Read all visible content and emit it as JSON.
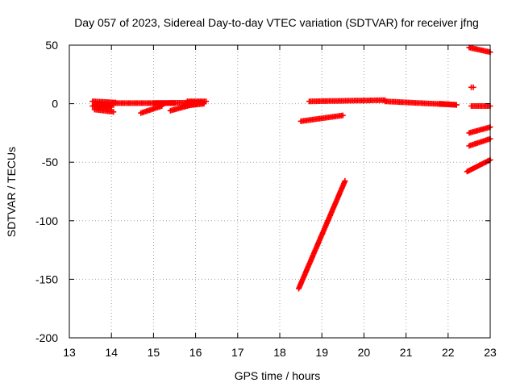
{
  "chart_data": {
    "type": "scatter",
    "title": "Day 057 of 2023, Sidereal Day-to-day VTEC variation (SDTVAR) for receiver jfng",
    "xlabel": "GPS time / hours",
    "ylabel": "SDTVAR / TECUs",
    "xlim": [
      13,
      23
    ],
    "ylim": [
      -200,
      50
    ],
    "xticks": [
      13,
      14,
      15,
      16,
      17,
      18,
      19,
      20,
      21,
      22,
      23
    ],
    "yticks": [
      -200,
      -150,
      -100,
      -50,
      0,
      50
    ],
    "grid": true,
    "marker": "plus",
    "colors": {
      "series": "#ff0000",
      "grid": "#a0a0a0"
    },
    "tracks": [
      {
        "x": [
          13.55,
          14.1
        ],
        "y": [
          2,
          1
        ]
      },
      {
        "x": [
          13.55,
          14.0
        ],
        "y": [
          -2,
          -3
        ]
      },
      {
        "x": [
          13.6,
          14.05
        ],
        "y": [
          -5,
          -7
        ]
      },
      {
        "x": [
          13.6,
          14.0
        ],
        "y": [
          -1,
          -2
        ]
      },
      {
        "x": [
          14.0,
          15.5
        ],
        "y": [
          0.5,
          0.5
        ]
      },
      {
        "x": [
          14.7,
          15.2
        ],
        "y": [
          -8,
          -2
        ]
      },
      {
        "x": [
          15.0,
          16.2
        ],
        "y": [
          0.5,
          1
        ]
      },
      {
        "x": [
          15.4,
          16.0
        ],
        "y": [
          -6,
          0
        ]
      },
      {
        "x": [
          15.7,
          16.2
        ],
        "y": [
          -2,
          0
        ]
      },
      {
        "x": [
          15.8,
          16.25
        ],
        "y": [
          2,
          2
        ]
      },
      {
        "x": [
          18.5,
          19.5
        ],
        "y": [
          -15,
          -10
        ]
      },
      {
        "x": [
          18.45,
          19.55
        ],
        "y": [
          -158,
          -66
        ]
      },
      {
        "x": [
          18.7,
          20.5
        ],
        "y": [
          2,
          3
        ]
      },
      {
        "x": [
          20.5,
          22.2
        ],
        "y": [
          2,
          -1
        ]
      },
      {
        "x": [
          21.8,
          22.2
        ],
        "y": [
          0,
          -1
        ]
      },
      {
        "x": [
          22.5,
          23.0
        ],
        "y": [
          48,
          44
        ]
      },
      {
        "x": [
          22.55,
          22.6
        ],
        "y": [
          14,
          14
        ]
      },
      {
        "x": [
          22.55,
          23.0
        ],
        "y": [
          -2,
          -2
        ]
      },
      {
        "x": [
          22.5,
          23.0
        ],
        "y": [
          -25,
          -20
        ]
      },
      {
        "x": [
          22.5,
          23.0
        ],
        "y": [
          -36,
          -30
        ]
      },
      {
        "x": [
          22.45,
          23.0
        ],
        "y": [
          -58,
          -48
        ]
      }
    ]
  }
}
